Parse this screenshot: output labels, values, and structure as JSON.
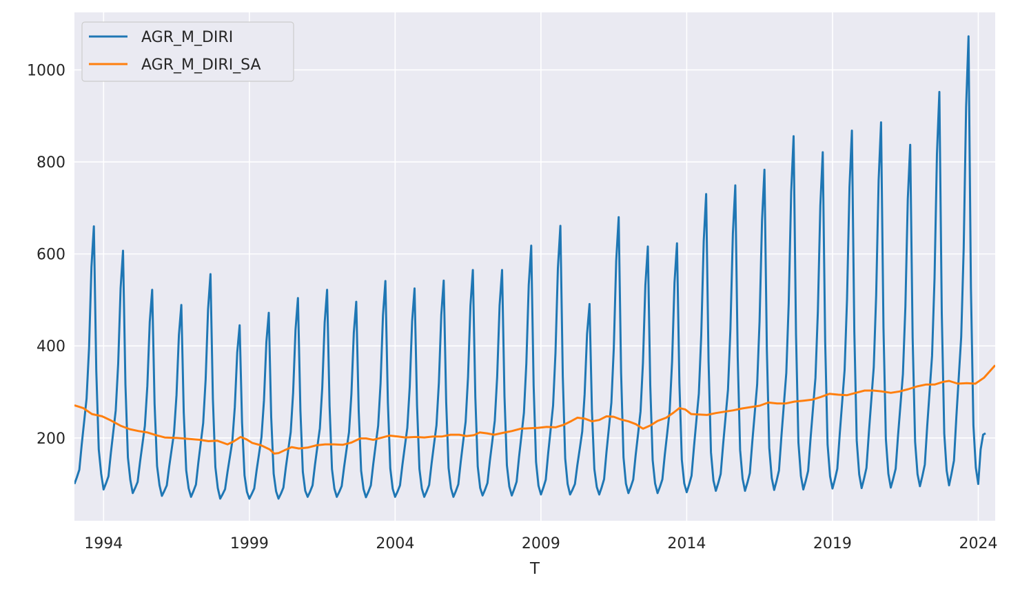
{
  "chart_data": {
    "type": "line",
    "title": "",
    "xlabel": "T",
    "ylabel": "",
    "xlim": [
      1993.0,
      2024.58
    ],
    "ylim": [
      20,
      1125
    ],
    "x_ticks": [
      1994,
      1999,
      2004,
      2009,
      2014,
      2019,
      2024
    ],
    "y_ticks": [
      200,
      400,
      600,
      800,
      1000
    ],
    "grid": true,
    "legend_position": "upper-left",
    "x_start": 1993.0,
    "x_step": 0.08333,
    "monthly_pattern": [
      0.22,
      0.35,
      0.5,
      1.0,
      1.45,
      1.9,
      2.9,
      4.5,
      5.3,
      2.45,
      0.9,
      0.42
    ],
    "series": [
      {
        "name": "AGR_M_DIRI",
        "color": "#1f77b4",
        "seasonal": true,
        "peaks": [
          660,
          607,
          522,
          489,
          556,
          445,
          472,
          504,
          522,
          496,
          541,
          525,
          542,
          565,
          565,
          618,
          661,
          491,
          680,
          616,
          623,
          730,
          749,
          783,
          856,
          821,
          868,
          886,
          837,
          952,
          1073
        ],
        "troughs": [
          100,
          88,
          80,
          74,
          72,
          68,
          68,
          68,
          72,
          72,
          71,
          72,
          72,
          72,
          75,
          75,
          77,
          77,
          77,
          80,
          80,
          82,
          85,
          85,
          87,
          88,
          90,
          91,
          92,
          95,
          97,
          100
        ],
        "end_values": [
          175,
          207,
          210
        ]
      },
      {
        "name": "AGR_M_DIRI_SA",
        "color": "#ff7f0e",
        "seasonal": false,
        "points": [
          [
            1993.0,
            271
          ],
          [
            1993.3,
            265
          ],
          [
            1993.6,
            252
          ],
          [
            1993.95,
            247
          ],
          [
            1994.25,
            238
          ],
          [
            1994.6,
            226
          ],
          [
            1994.9,
            219
          ],
          [
            1995.2,
            215
          ],
          [
            1995.5,
            212
          ],
          [
            1995.8,
            206
          ],
          [
            1996.1,
            201
          ],
          [
            1996.5,
            200
          ],
          [
            1996.9,
            198
          ],
          [
            1997.3,
            196
          ],
          [
            1997.6,
            193
          ],
          [
            1997.9,
            194
          ],
          [
            1998.25,
            186
          ],
          [
            1998.45,
            192
          ],
          [
            1998.7,
            202
          ],
          [
            1998.9,
            197
          ],
          [
            1999.1,
            189
          ],
          [
            1999.4,
            184
          ],
          [
            1999.7,
            175
          ],
          [
            1999.85,
            166
          ],
          [
            2000.0,
            167
          ],
          [
            2000.2,
            173
          ],
          [
            2000.45,
            180
          ],
          [
            2000.7,
            177
          ],
          [
            2001.0,
            179
          ],
          [
            2001.3,
            184
          ],
          [
            2001.6,
            186
          ],
          [
            2001.9,
            186
          ],
          [
            2002.2,
            185
          ],
          [
            2002.5,
            190
          ],
          [
            2002.8,
            199
          ],
          [
            2003.0,
            199
          ],
          [
            2003.25,
            196
          ],
          [
            2003.5,
            200
          ],
          [
            2003.8,
            205
          ],
          [
            2004.1,
            203
          ],
          [
            2004.35,
            201
          ],
          [
            2004.7,
            202
          ],
          [
            2005.0,
            201
          ],
          [
            2005.3,
            203
          ],
          [
            2005.6,
            203
          ],
          [
            2005.9,
            207
          ],
          [
            2006.2,
            207
          ],
          [
            2006.45,
            204
          ],
          [
            2006.7,
            206
          ],
          [
            2006.9,
            212
          ],
          [
            2007.15,
            210
          ],
          [
            2007.4,
            207
          ],
          [
            2007.7,
            211
          ],
          [
            2008.0,
            215
          ],
          [
            2008.3,
            220
          ],
          [
            2008.6,
            221
          ],
          [
            2008.9,
            222
          ],
          [
            2009.2,
            224
          ],
          [
            2009.5,
            223
          ],
          [
            2009.8,
            229
          ],
          [
            2010.05,
            237
          ],
          [
            2010.25,
            244
          ],
          [
            2010.5,
            242
          ],
          [
            2010.75,
            236
          ],
          [
            2011.0,
            239
          ],
          [
            2011.25,
            247
          ],
          [
            2011.5,
            246
          ],
          [
            2011.75,
            240
          ],
          [
            2012.0,
            236
          ],
          [
            2012.25,
            230
          ],
          [
            2012.5,
            220
          ],
          [
            2012.75,
            227
          ],
          [
            2013.0,
            237
          ],
          [
            2013.3,
            244
          ],
          [
            2013.55,
            255
          ],
          [
            2013.75,
            265
          ],
          [
            2013.95,
            262
          ],
          [
            2014.15,
            252
          ],
          [
            2014.4,
            251
          ],
          [
            2014.7,
            250
          ],
          [
            2015.0,
            254
          ],
          [
            2015.3,
            257
          ],
          [
            2015.6,
            260
          ],
          [
            2015.9,
            264
          ],
          [
            2016.2,
            267
          ],
          [
            2016.5,
            270
          ],
          [
            2016.8,
            277
          ],
          [
            2017.1,
            275
          ],
          [
            2017.4,
            275
          ],
          [
            2017.7,
            279
          ],
          [
            2018.0,
            281
          ],
          [
            2018.3,
            283
          ],
          [
            2018.6,
            289
          ],
          [
            2018.9,
            296
          ],
          [
            2019.2,
            294
          ],
          [
            2019.5,
            293
          ],
          [
            2019.8,
            298
          ],
          [
            2020.1,
            303
          ],
          [
            2020.4,
            303
          ],
          [
            2020.7,
            301
          ],
          [
            2021.0,
            298
          ],
          [
            2021.3,
            301
          ],
          [
            2021.6,
            306
          ],
          [
            2021.9,
            312
          ],
          [
            2022.2,
            316
          ],
          [
            2022.5,
            316
          ],
          [
            2022.8,
            322
          ],
          [
            2023.0,
            324
          ],
          [
            2023.3,
            318
          ],
          [
            2023.6,
            319
          ],
          [
            2023.9,
            318
          ],
          [
            2024.2,
            331
          ],
          [
            2024.58,
            358
          ]
        ]
      }
    ]
  }
}
